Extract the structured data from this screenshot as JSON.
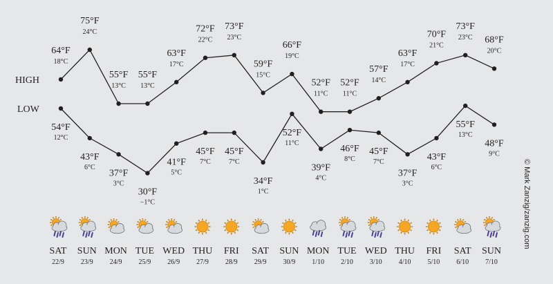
{
  "credit": "© Mark Zanzig/zanzig.com",
  "chart_data": {
    "type": "line",
    "row_labels": {
      "high": "HIGH",
      "low": "LOW"
    },
    "days": [
      {
        "day": "SAT",
        "date": "22/9",
        "high_f": "64°F",
        "high_c": "18°C",
        "low_f": "54°F",
        "low_c": "12°C",
        "icon": "sun-cloud-rain-icon"
      },
      {
        "day": "SUN",
        "date": "23/9",
        "high_f": "75°F",
        "high_c": "24°C",
        "low_f": "43°F",
        "low_c": "6°C",
        "icon": "sun-cloud-rain-icon"
      },
      {
        "day": "MON",
        "date": "24/9",
        "high_f": "55°F",
        "high_c": "13°C",
        "low_f": "37°F",
        "low_c": "3°C",
        "icon": "sun-cloud-icon"
      },
      {
        "day": "TUE",
        "date": "25/9",
        "high_f": "55°F",
        "high_c": "13°C",
        "low_f": "30°F",
        "low_c": "−1°C",
        "icon": "sun-cloud-icon"
      },
      {
        "day": "WED",
        "date": "26/9",
        "high_f": "63°F",
        "high_c": "17°C",
        "low_f": "41°F",
        "low_c": "5°C",
        "icon": "sun-cloud-icon"
      },
      {
        "day": "THU",
        "date": "27/9",
        "high_f": "72°F",
        "high_c": "22°C",
        "low_f": "45°F",
        "low_c": "7°C",
        "icon": "sun-icon"
      },
      {
        "day": "FRI",
        "date": "28/9",
        "high_f": "73°F",
        "high_c": "23°C",
        "low_f": "45°F",
        "low_c": "7°C",
        "icon": "sun-icon"
      },
      {
        "day": "SAT",
        "date": "29/9",
        "high_f": "59°F",
        "high_c": "15°C",
        "low_f": "34°F",
        "low_c": "1°C",
        "icon": "sun-cloud-icon"
      },
      {
        "day": "SUN",
        "date": "30/9",
        "high_f": "66°F",
        "high_c": "19°C",
        "low_f": "52°F",
        "low_c": "11°C",
        "icon": "sun-icon"
      },
      {
        "day": "MON",
        "date": "1/10",
        "high_f": "52°F",
        "high_c": "11°C",
        "low_f": "39°F",
        "low_c": "4°C",
        "icon": "cloud-rain-icon"
      },
      {
        "day": "TUE",
        "date": "2/10",
        "high_f": "52°F",
        "high_c": "11°C",
        "low_f": "46°F",
        "low_c": "8°C",
        "icon": "sun-cloud-rain-icon"
      },
      {
        "day": "WED",
        "date": "3/10",
        "high_f": "57°F",
        "high_c": "14°C",
        "low_f": "45°F",
        "low_c": "7°C",
        "icon": "sun-cloud-rain-icon"
      },
      {
        "day": "THU",
        "date": "4/10",
        "high_f": "63°F",
        "high_c": "17°C",
        "low_f": "37°F",
        "low_c": "3°C",
        "icon": "sun-icon"
      },
      {
        "day": "FRI",
        "date": "5/10",
        "high_f": "70°F",
        "high_c": "21°C",
        "low_f": "43°F",
        "low_c": "6°C",
        "icon": "sun-icon"
      },
      {
        "day": "SAT",
        "date": "6/10",
        "high_f": "73°F",
        "high_c": "23°C",
        "low_f": "55°F",
        "low_c": "13°C",
        "icon": "sun-cloud-icon"
      },
      {
        "day": "SUN",
        "date": "7/10",
        "high_f": "68°F",
        "high_c": "20°C",
        "low_f": "48°F",
        "low_c": "9°C",
        "icon": "sun-cloud-rain-icon"
      }
    ],
    "series": [
      {
        "name": "HIGH",
        "values": [
          64,
          75,
          55,
          55,
          63,
          72,
          73,
          59,
          66,
          52,
          52,
          57,
          63,
          70,
          73,
          68
        ]
      },
      {
        "name": "LOW",
        "values": [
          54,
          43,
          37,
          30,
          41,
          45,
          45,
          34,
          52,
          39,
          46,
          45,
          37,
          43,
          55,
          48
        ]
      }
    ],
    "colors": {
      "background": "#e6e7e8",
      "line": "#231f20",
      "sun": "#f6a623",
      "cloud": "#d7dadd",
      "rain": "#4b3f98"
    }
  }
}
